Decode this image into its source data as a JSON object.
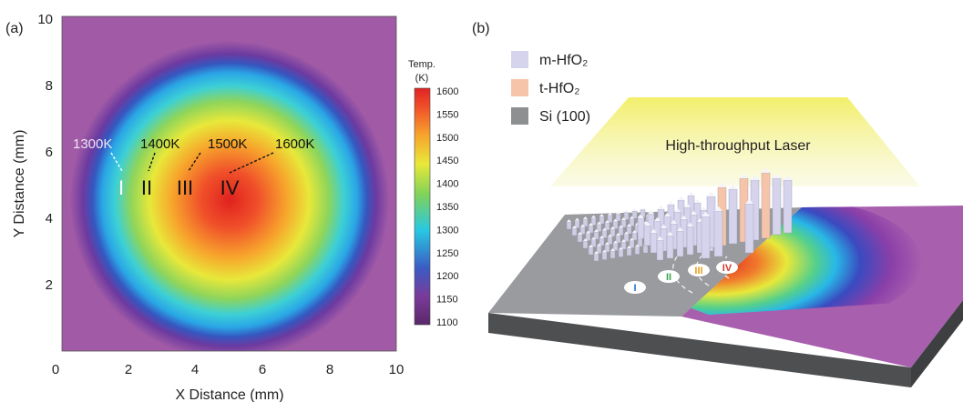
{
  "panel_a": {
    "label": "(a)",
    "x_axis_label": "X Distance (mm)",
    "y_axis_label": "Y Distance (mm)",
    "x_ticks": [
      "0",
      "2",
      "4",
      "6",
      "8",
      "10"
    ],
    "y_ticks": [
      "2",
      "4",
      "6",
      "8",
      "10"
    ],
    "colorbar": {
      "title_line1": "Temp.",
      "title_line2": "(K)",
      "ticks": [
        "1600",
        "1550",
        "1500",
        "1450",
        "1400",
        "1350",
        "1300",
        "1250",
        "1200",
        "1150",
        "1100"
      ],
      "min": 1100,
      "max": 1600
    },
    "zones": [
      {
        "numeral": "I",
        "temp_label": "1300K"
      },
      {
        "numeral": "II",
        "temp_label": "1400K"
      },
      {
        "numeral": "III",
        "temp_label": "1500K"
      },
      {
        "numeral": "IV",
        "temp_label": "1600K"
      }
    ],
    "heatmap": {
      "center_mm": [
        5.0,
        4.6
      ],
      "peak_K": 1600,
      "background_K": 1140,
      "x_range_mm": [
        0,
        10
      ],
      "y_range_mm": [
        0,
        10
      ]
    }
  },
  "panel_b": {
    "label": "(b)",
    "legend": [
      {
        "label": "m-HfO₂",
        "color": "#d6d4ec"
      },
      {
        "label": "t-HfO₂",
        "color": "#f6c4a8"
      },
      {
        "label": "Si (100)",
        "color": "#8e8f91"
      }
    ],
    "laser_label": "High-throughput Laser",
    "zone_markers": [
      "I",
      "II",
      "III",
      "IV"
    ]
  },
  "colors": {
    "background_purple": "#a05aa6",
    "laser_yellow": "#f2ef6a",
    "substrate_top": "#9a9b9e",
    "substrate_side": "#555658"
  }
}
